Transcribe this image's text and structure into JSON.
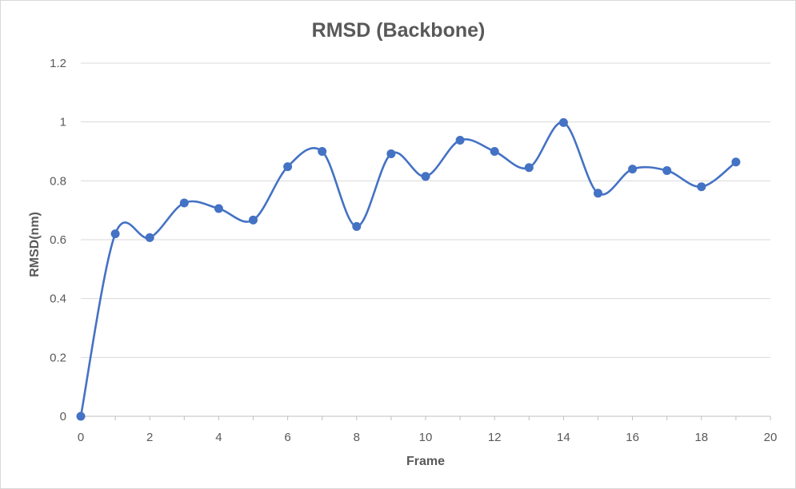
{
  "chart_data": {
    "type": "line",
    "title": "RMSD (Backbone)",
    "xlabel": "Frame",
    "ylabel": "RMSD(nm)",
    "xlim": [
      0,
      20
    ],
    "ylim": [
      0,
      1.2
    ],
    "xticks": [
      "0",
      "2",
      "4",
      "6",
      "8",
      "10",
      "12",
      "14",
      "16",
      "18",
      "20"
    ],
    "yticks": [
      "0",
      "0.2",
      "0.4",
      "0.6",
      "0.8",
      "1",
      "1.2"
    ],
    "grid": true,
    "legend": "none",
    "smooth": true,
    "markers": true,
    "series": [
      {
        "color": "#4472C4",
        "x": [
          0,
          1,
          2,
          3,
          4,
          5,
          6,
          7,
          8,
          9,
          10,
          11,
          12,
          13,
          14,
          15,
          16,
          17,
          18,
          19
        ],
        "y": [
          0,
          0.62,
          0.607,
          0.725,
          0.706,
          0.667,
          0.848,
          0.9,
          0.645,
          0.892,
          0.815,
          0.938,
          0.9,
          0.845,
          0.998,
          0.758,
          0.84,
          0.835,
          0.78,
          0.864
        ]
      }
    ]
  }
}
